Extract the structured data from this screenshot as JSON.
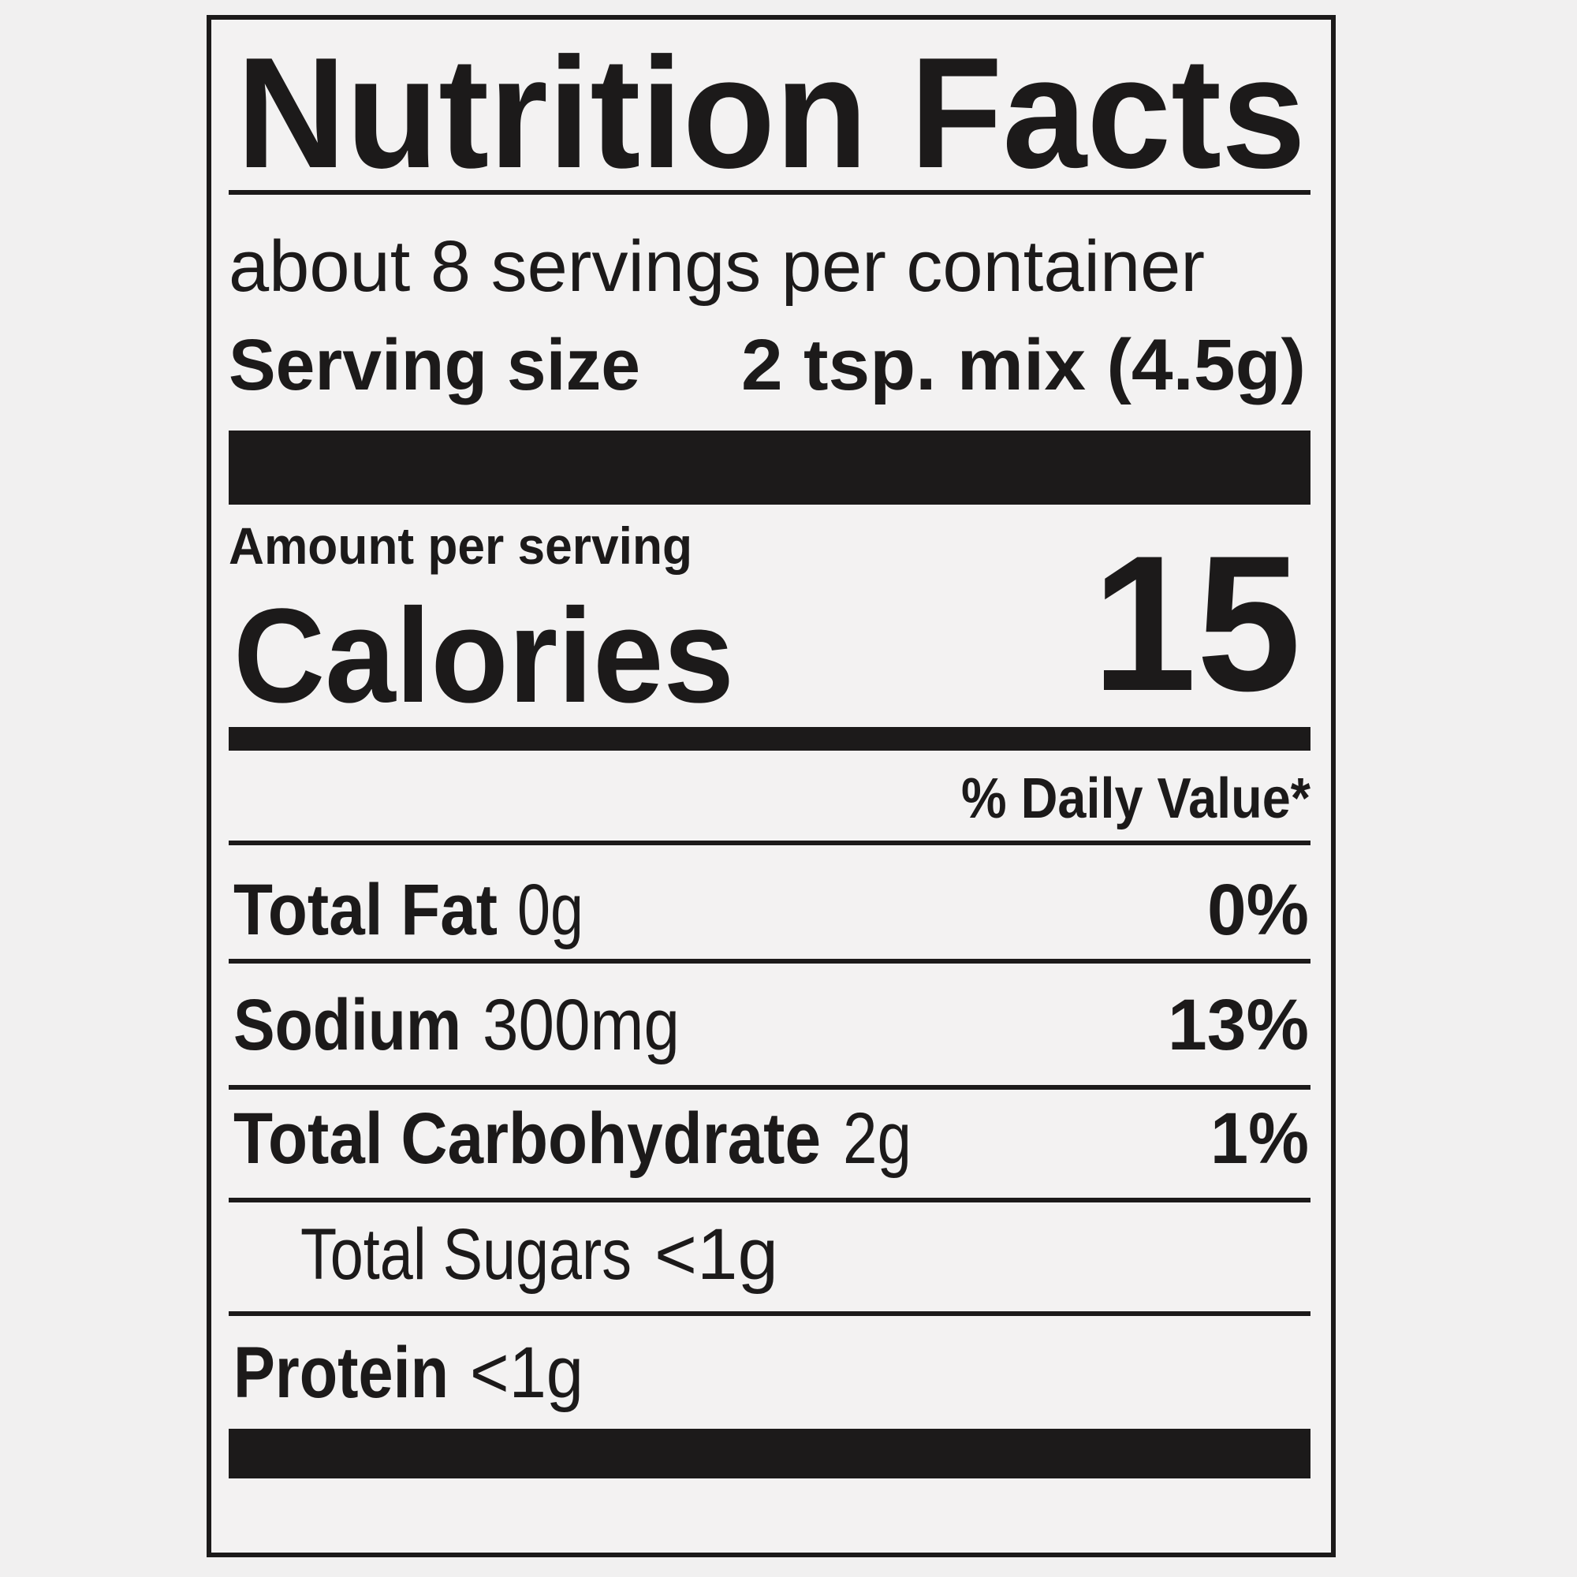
{
  "header": {
    "title": "Nutrition Facts",
    "servings_per_container": "about 8 servings per container",
    "serving_size_label": "Serving size",
    "serving_size_value": "2 tsp. mix (4.5g)"
  },
  "calories": {
    "amount_per_serving": "Amount per serving",
    "label": "Calories",
    "value": "15"
  },
  "daily_value_header": "% Daily Value*",
  "nutrients": [
    {
      "name": "Total Fat",
      "amount": "0g",
      "daily_value": "0%"
    },
    {
      "name": "Sodium",
      "amount": "300mg",
      "daily_value": "13%"
    },
    {
      "name": "Total Carbohydrate",
      "amount": "2g",
      "daily_value": "1%"
    },
    {
      "name": "Total Sugars",
      "amount": "<1g"
    },
    {
      "name": "Protein",
      "amount": "<1g"
    }
  ]
}
